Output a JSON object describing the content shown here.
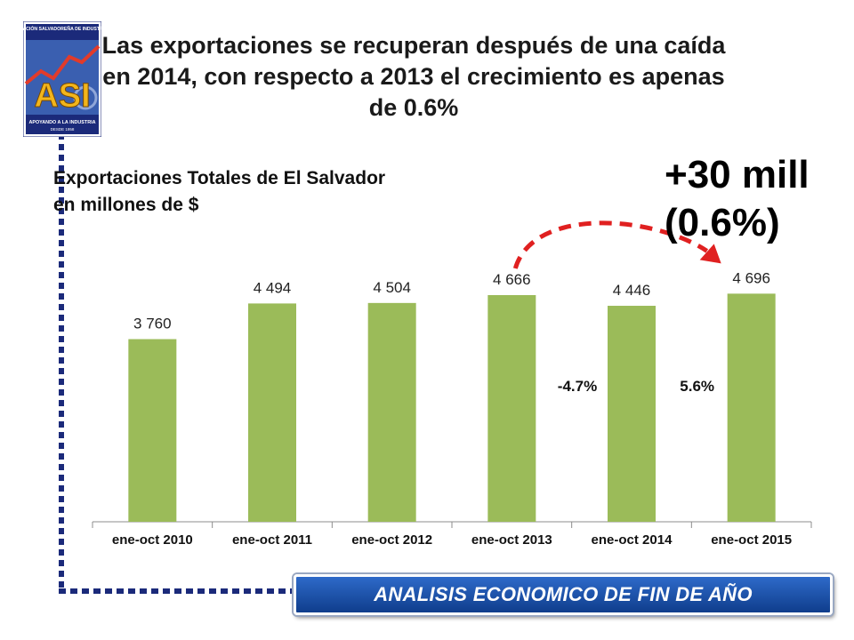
{
  "slide": {
    "title": "Las exportaciones se recuperan después de una caída en 2014, con respecto a 2013 el crecimiento es apenas de 0.6%",
    "subtitle_line1": "Exportaciones Totales de El Salvador",
    "subtitle_line2": "en millones de $",
    "highlight_line1": "+30 mill",
    "highlight_line2": "(0.6%)",
    "footer": "ANALISIS ECONOMICO DE FIN DE AÑO"
  },
  "logo": {
    "top_text": "ASOCIACIÓN SALVADOREÑA DE INDUSTRIALES",
    "letters": "ASI",
    "bottom_text": "APOYANDO A LA INDUSTRIA",
    "since": "DESDE 1958"
  },
  "colors": {
    "bar": "#9BBB59",
    "arrow": "#E02020",
    "dotted_frame": "#1B2A7A",
    "footer_bg": "#1F56B3"
  },
  "chart_data": {
    "type": "bar",
    "title": "Exportaciones Totales de El Salvador en millones de $",
    "xlabel": "",
    "ylabel": "",
    "categories": [
      "ene-oct 2010",
      "ene-oct 2011",
      "ene-oct 2012",
      "ene-oct 2013",
      "ene-oct 2014",
      "ene-oct 2015"
    ],
    "values": [
      3760,
      4494,
      4504,
      4666,
      4446,
      4696
    ],
    "value_labels": [
      "3 760",
      "4 494",
      "4 504",
      "4 666",
      "4 446",
      "4 696"
    ],
    "ylim": [
      0,
      5000
    ],
    "grid": false,
    "annotations": [
      {
        "text": "-4.7%",
        "category": "ene-oct 2014"
      },
      {
        "text": "5.6%",
        "category": "ene-oct 2015"
      }
    ],
    "arrow": {
      "from": "ene-oct 2013",
      "to": "ene-oct 2015"
    }
  }
}
